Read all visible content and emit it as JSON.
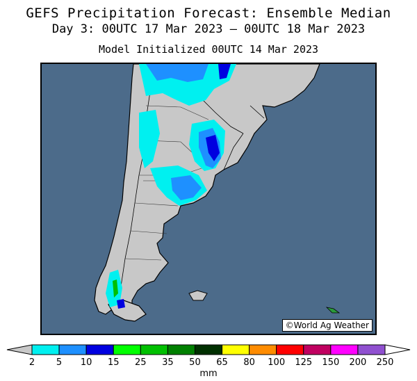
{
  "title": {
    "line1": "GEFS Precipitation Forecast: Ensemble Median",
    "line2": "Day 3: 00UTC 17 Mar 2023 — 00UTC 18 Mar 2023",
    "line3": "Model Initialized 00UTC 14 Mar 2023"
  },
  "map": {
    "region": "southern South America",
    "ocean_color": "#4c6b8a",
    "land_color": "#c8c8c8",
    "credit": "©World Ag Weather"
  },
  "colorbar": {
    "unit": "mm",
    "ticks": [
      "2",
      "5",
      "10",
      "15",
      "25",
      "35",
      "50",
      "65",
      "80",
      "100",
      "125",
      "150",
      "200",
      "250"
    ],
    "colors": [
      "#00f0f0",
      "#1e90ff",
      "#0000e0",
      "#00ff00",
      "#00c000",
      "#008000",
      "#003000",
      "#ffff00",
      "#ff8c00",
      "#ff0000",
      "#c00060",
      "#ff00ff",
      "#9050d0"
    ],
    "low_color": "#c8c8c8",
    "high_color": "#ffffff"
  }
}
